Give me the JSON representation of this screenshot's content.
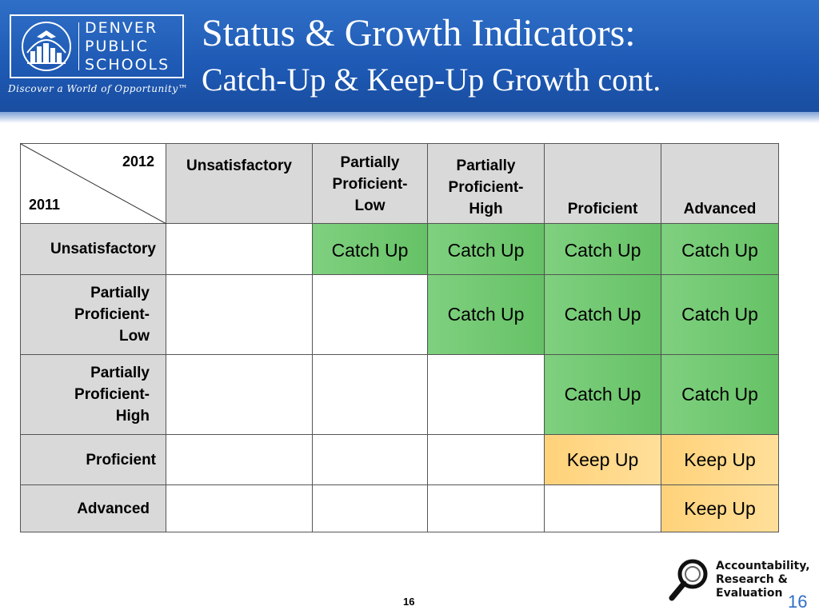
{
  "header": {
    "logo_lines": [
      "DENVER",
      "PUBLIC",
      "SCHOOLS"
    ],
    "tagline": "Discover a World of Opportunity™",
    "title_line1": "Status & Growth Indicators:",
    "title_line2": "Catch-Up & Keep-Up Growth cont."
  },
  "table": {
    "corner_top": "2012",
    "corner_bottom": "2011",
    "columns": [
      [
        "Unsatisfactory"
      ],
      [
        "Partially",
        "Proficient-",
        "Low"
      ],
      [
        "Partially",
        "Proficient-",
        "High"
      ],
      [
        "Proficient"
      ],
      [
        "Advanced"
      ]
    ],
    "rows": [
      {
        "label": [
          "Unsatisfactory"
        ],
        "cells": [
          "",
          "Catch Up",
          "Catch Up",
          "Catch Up",
          "Catch Up"
        ]
      },
      {
        "label": [
          "Partially",
          "Proficient-",
          "Low"
        ],
        "cells": [
          "",
          "",
          "Catch Up",
          "Catch Up",
          "Catch Up"
        ]
      },
      {
        "label": [
          "Partially",
          "Proficient-",
          "High"
        ],
        "cells": [
          "",
          "",
          "",
          "Catch Up",
          "Catch Up"
        ]
      },
      {
        "label": [
          "Proficient"
        ],
        "cells": [
          "",
          "",
          "",
          "Keep Up",
          "Keep Up"
        ]
      },
      {
        "label": [
          "Advanced"
        ],
        "cells": [
          "",
          "",
          "",
          "",
          "Keep Up"
        ]
      }
    ]
  },
  "colors": {
    "header_blue": "#1d58b3",
    "catch_up": "#6cc66c",
    "keep_up": "#ffd98a",
    "header_cell": "#d9d9d9"
  },
  "footer": {
    "page_center": "16",
    "page_right": "16",
    "are_lines": [
      "Accountability,",
      "Research &",
      "Evaluation"
    ]
  }
}
